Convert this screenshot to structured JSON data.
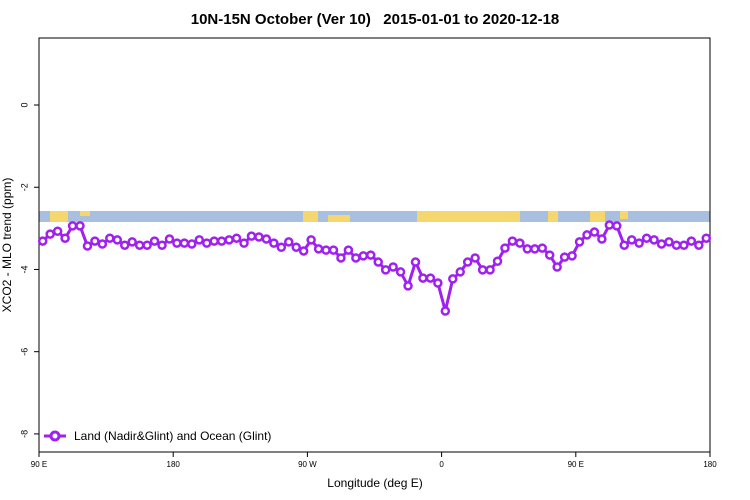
{
  "chart_data": {
    "type": "line",
    "title": "10N-15N October (Ver 10)   2015-01-01 to 2020-12-18",
    "x_label": "Longitude (deg E)",
    "y_label": "XCO2 - MLO trend (ppm)",
    "x": [
      92.5,
      97.5,
      102.5,
      107.5,
      112.5,
      117.5,
      122.5,
      127.5,
      132.5,
      137.5,
      142.5,
      147.5,
      152.5,
      157.5,
      162.5,
      167.5,
      172.5,
      177.5,
      182.5,
      187.5,
      192.5,
      197.5,
      202.5,
      207.5,
      212.5,
      217.5,
      222.5,
      227.5,
      232.5,
      237.5,
      242.5,
      247.5,
      252.5,
      257.5,
      262.5,
      267.5,
      272.5,
      277.5,
      282.5,
      287.5,
      292.5,
      297.5,
      302.5,
      307.5,
      312.5,
      317.5,
      322.5,
      327.5,
      332.5,
      337.5,
      342.5,
      347.5,
      352.5,
      357.5,
      362.5,
      367.5,
      372.5,
      377.5,
      382.5,
      387.5,
      392.5,
      397.5,
      402.5,
      407.5,
      412.5,
      417.5,
      422.5,
      427.5,
      432.5,
      437.5,
      442.5,
      447.5,
      452.5,
      457.5,
      462.5,
      467.5,
      472.5,
      477.5,
      482.5,
      487.5,
      492.5,
      497.5,
      502.5,
      507.5,
      512.5,
      517.5,
      522.5,
      527.5,
      532.5,
      537.5
    ],
    "series": [
      {
        "name": "Land (Nadir&Glint) and Ocean (Glint)",
        "color": "#a020f0",
        "values": [
          -3.31,
          -3.14,
          -3.07,
          -3.24,
          -2.94,
          -2.94,
          -3.43,
          -3.31,
          -3.38,
          -3.24,
          -3.28,
          -3.41,
          -3.33,
          -3.41,
          -3.41,
          -3.31,
          -3.41,
          -3.26,
          -3.36,
          -3.36,
          -3.38,
          -3.28,
          -3.36,
          -3.31,
          -3.31,
          -3.28,
          -3.24,
          -3.36,
          -3.19,
          -3.21,
          -3.26,
          -3.36,
          -3.46,
          -3.33,
          -3.46,
          -3.55,
          -3.28,
          -3.5,
          -3.53,
          -3.53,
          -3.72,
          -3.53,
          -3.72,
          -3.67,
          -3.65,
          -3.82,
          -4.01,
          -3.94,
          -4.06,
          -4.4,
          -3.82,
          -4.21,
          -4.21,
          -4.33,
          -5.01,
          -4.23,
          -4.06,
          -3.82,
          -3.72,
          -4.01,
          -4.01,
          -3.8,
          -3.48,
          -3.31,
          -3.36,
          -3.5,
          -3.5,
          -3.48,
          -3.65,
          -3.94,
          -3.7,
          -3.67,
          -3.33,
          -3.16,
          -3.09,
          -3.26,
          -2.92,
          -2.94,
          -3.41,
          -3.28,
          -3.36,
          -3.24,
          -3.28,
          -3.38,
          -3.33,
          -3.41,
          -3.41,
          -3.31,
          -3.41,
          -3.24
        ]
      }
    ],
    "xlim": [
      90,
      540
    ],
    "xticks": [
      {
        "value": 90,
        "label": "90 E"
      },
      180,
      {
        "value": 270,
        "label": "90 W"
      },
      {
        "value": 360,
        "label": "0"
      },
      {
        "value": 450,
        "label": "90 E"
      },
      {
        "value": 540,
        "label": "180"
      }
    ],
    "ylim": [
      -8.44,
      1.63
    ],
    "yticks": [
      0,
      -2,
      -4,
      -6,
      -8
    ],
    "legend": "bottom-left"
  }
}
